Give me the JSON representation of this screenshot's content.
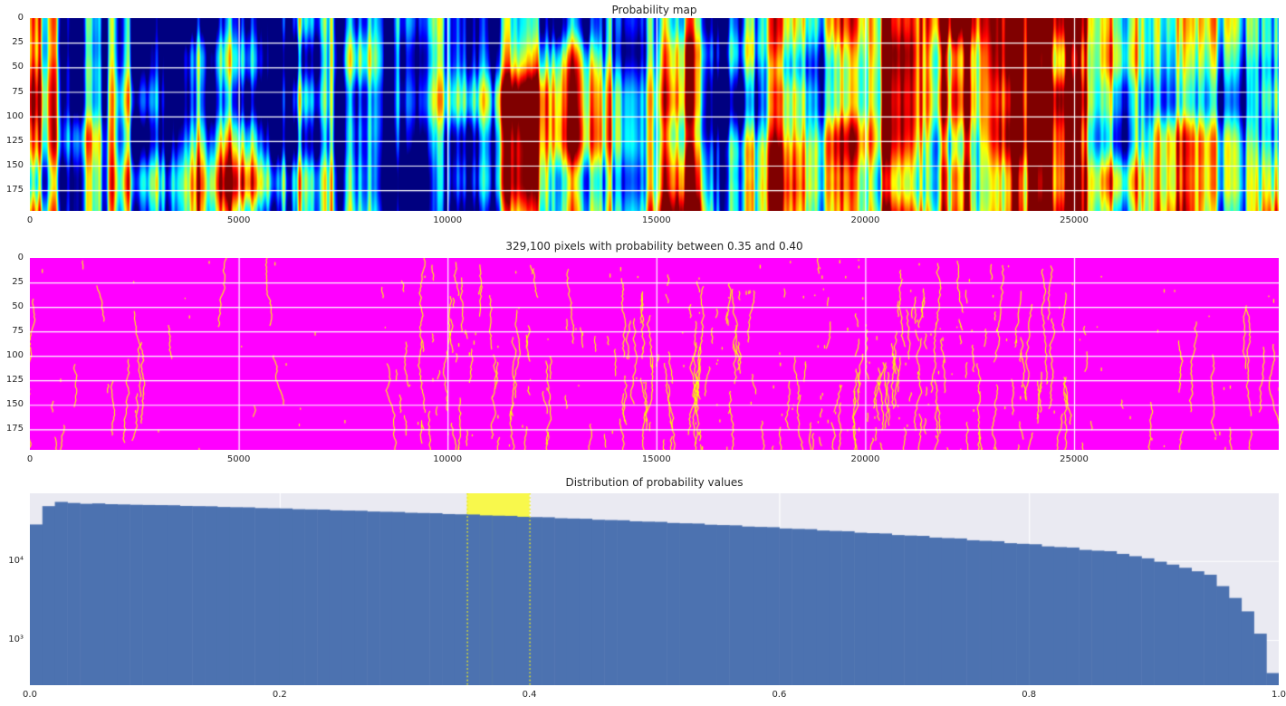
{
  "page": {
    "background": "#ffffff",
    "text_color": "#262626",
    "colors": {
      "histogram_bar": "#4c72b0",
      "axes_background": "#eaeaf2",
      "grid_line": "#ffffff",
      "highlight_span": "#f8f84c",
      "highlight_line": "#e9e920",
      "mask_background": "#ff00ff",
      "mask_trace": "#ffff00"
    }
  },
  "chart_data": [
    {
      "id": "probability-map",
      "type": "heatmap",
      "title": "Probability map",
      "colormap": "jet",
      "xlim": [
        0,
        29900
      ],
      "ylim": [
        0,
        196
      ],
      "y_down": true,
      "grid": true,
      "xticks": {
        "values": [
          0,
          5000,
          10000,
          15000,
          20000,
          25000
        ],
        "labels": [
          "0",
          "5000",
          "10000",
          "15000",
          "20000",
          "25000"
        ]
      },
      "yticks": {
        "values": [
          0,
          25,
          50,
          75,
          100,
          125,
          150,
          175
        ],
        "labels": [
          "0",
          "25",
          "50",
          "75",
          "100",
          "125",
          "150",
          "175"
        ]
      },
      "description": "Jet-colormap probability heatmap (29900 x ~196 px) with strong vertical streak texture, red/orange hot bands and deep blue cold bands, white grid lines"
    },
    {
      "id": "probability-mask",
      "type": "heatmap",
      "title": "329,100 pixels with probability between 0.35 and 0.40",
      "xlim": [
        0,
        29900
      ],
      "ylim": [
        0,
        196
      ],
      "y_down": true,
      "grid": true,
      "colors": {
        "background": "#ff00ff",
        "selected": "#ffff00"
      },
      "xticks": {
        "values": [
          0,
          5000,
          10000,
          15000,
          20000,
          25000
        ],
        "labels": [
          "0",
          "5000",
          "10000",
          "15000",
          "20000",
          "25000"
        ]
      },
      "yticks": {
        "values": [
          0,
          25,
          50,
          75,
          100,
          125,
          150,
          175
        ],
        "labels": [
          "0",
          "25",
          "50",
          "75",
          "100",
          "125",
          "150",
          "175"
        ]
      },
      "description": "Magenta field with sparse thin wiggly yellow vertical traces marking pixels whose probability lies in [0.35, 0.40], white grid lines"
    },
    {
      "id": "probability-histogram",
      "type": "bar",
      "title": "Distribution of probability values",
      "yscale": "log",
      "xlim": [
        0,
        1
      ],
      "ylim": [
        267,
        72000
      ],
      "bins": 100,
      "grid": true,
      "xticks": {
        "values": [
          0,
          0.2,
          0.4,
          0.6,
          0.8,
          1.0
        ],
        "labels": [
          "0.0",
          "0.2",
          "0.4",
          "0.6",
          "0.8",
          "1.0"
        ]
      },
      "yticks": {
        "values": [
          10000,
          1000
        ],
        "labels": [
          "10⁴",
          "10³"
        ]
      },
      "highlight": {
        "from": 0.35,
        "to": 0.4
      },
      "values": [
        29000,
        49500,
        56000,
        54300,
        53000,
        53600,
        52400,
        52000,
        51500,
        51200,
        51000,
        50800,
        49800,
        49500,
        49300,
        48300,
        48000,
        47800,
        46800,
        46500,
        46300,
        45300,
        45000,
        44800,
        43800,
        43500,
        43300,
        42300,
        42000,
        41800,
        40800,
        40500,
        40300,
        39300,
        39000,
        38800,
        37800,
        37500,
        37300,
        36300,
        36000,
        35800,
        34800,
        34500,
        34300,
        33300,
        33000,
        32800,
        31800,
        31500,
        31300,
        30300,
        30000,
        29800,
        28800,
        28500,
        28300,
        27300,
        27000,
        26800,
        25800,
        25500,
        25300,
        24300,
        24000,
        23800,
        22800,
        22500,
        22300,
        21300,
        21000,
        20800,
        19800,
        19500,
        19300,
        18300,
        18000,
        17800,
        16800,
        16500,
        16300,
        15300,
        15000,
        14800,
        13800,
        13500,
        13300,
        12300,
        11500,
        10800,
        9800,
        9000,
        8200,
        7400,
        6700,
        4800,
        3400,
        2300,
        1200,
        380
      ]
    }
  ]
}
